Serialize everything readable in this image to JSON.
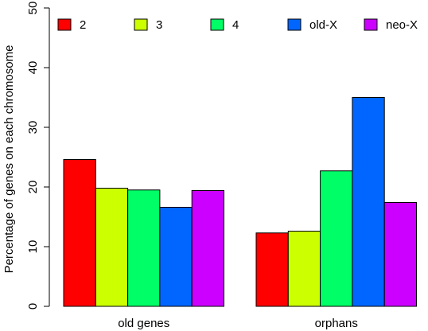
{
  "chart_data": {
    "type": "bar",
    "y_label": "Percentage of genes on each chromosome",
    "categories": [
      "old genes",
      "orphans"
    ],
    "series": [
      {
        "name": "2",
        "color": "#ff0000",
        "values": [
          24.6,
          12.3
        ]
      },
      {
        "name": "3",
        "color": "#ccff00",
        "values": [
          19.8,
          12.6
        ]
      },
      {
        "name": "4",
        "color": "#00ff66",
        "values": [
          19.5,
          22.7
        ]
      },
      {
        "name": "old-X",
        "color": "#0066ff",
        "values": [
          16.6,
          35.0
        ]
      },
      {
        "name": "neo-X",
        "color": "#cc00ff",
        "values": [
          19.4,
          17.4
        ]
      }
    ],
    "ylim": [
      0,
      50
    ],
    "yticks": [
      0,
      10,
      20,
      30,
      40,
      50
    ],
    "grid": false,
    "legend": "top"
  }
}
